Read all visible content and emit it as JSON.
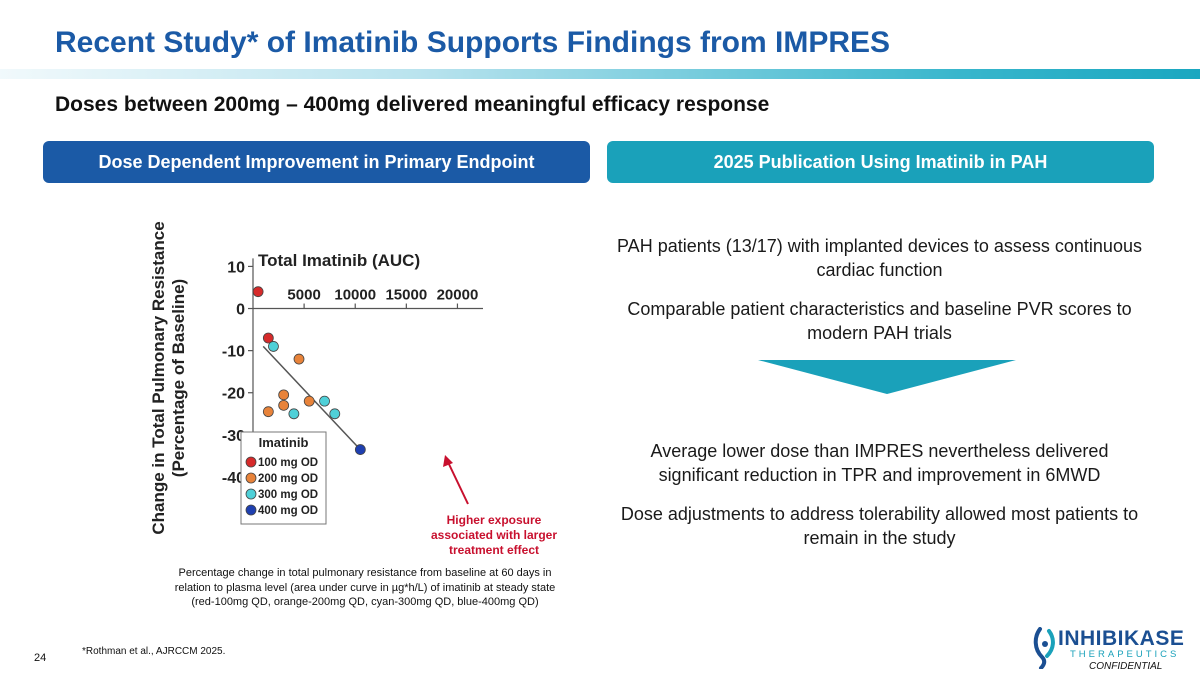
{
  "slide": {
    "title": "Recent Study* of Imatinib Supports Findings from IMPRES",
    "subtitle": "Doses between 200mg – 400mg delivered meaningful efficacy response",
    "page_number": "24",
    "footnote": "*Rothman et al., AJRCCM 2025.",
    "confidential": "CONFIDENTIAL"
  },
  "left_panel": {
    "header": "Dose Dependent Improvement in Primary Endpoint",
    "callout": [
      "Higher exposure",
      "associated with larger",
      "treatment effect"
    ],
    "caption": [
      "Percentage change in total pulmonary resistance  from baseline at 60 days in",
      "relation to plasma level (area under curve in µg*h/L) of imatinib at steady state",
      "(red-100mg QD, orange-200mg QD, cyan-300mg QD, blue-400mg QD)"
    ]
  },
  "right_panel": {
    "header": "2025 Publication Using Imatinib in PAH",
    "bullets_top": [
      "PAH patients (13/17) with implanted devices to assess continuous cardiac function",
      "Comparable patient characteristics and baseline PVR scores to modern PAH trials"
    ],
    "bullets_bottom": [
      "Average lower dose than IMPRES nevertheless delivered significant reduction in TPR and improvement in 6MWD",
      "Dose adjustments to address tolerability allowed most patients to remain in the study"
    ]
  },
  "logo": {
    "name": "INHIBIKASE",
    "tagline": "THERAPEUTICS"
  },
  "colors": {
    "title": "#1b5aa6",
    "header_left": "#1b5aa6",
    "header_right": "#1aa1ba",
    "callout": "#c8102e"
  },
  "chart_data": {
    "type": "scatter",
    "title": "Total Imatinib (AUC)",
    "ylabel": "Change in Total Pulmonary Resistance (Percentage of Baseline)",
    "xlabel": "",
    "x_ticks": [
      5000,
      10000,
      15000,
      20000
    ],
    "y_ticks": [
      10,
      0,
      -10,
      -20,
      -30,
      -40
    ],
    "xlim": [
      0,
      22500
    ],
    "ylim": [
      -45,
      12
    ],
    "legend_title": "Imatinib",
    "legend_position": "bottom-left",
    "series": [
      {
        "name": "100 mg OD",
        "color": "#d62a2a",
        "points": [
          [
            500,
            4
          ],
          [
            1500,
            -7
          ]
        ]
      },
      {
        "name": "200 mg OD",
        "color": "#e8833a",
        "points": [
          [
            1500,
            -24.5
          ],
          [
            3000,
            -20.5
          ],
          [
            3000,
            -23
          ],
          [
            4500,
            -12
          ],
          [
            5500,
            -22
          ]
        ]
      },
      {
        "name": "300 mg OD",
        "color": "#4fd0d8",
        "points": [
          [
            2000,
            -9
          ],
          [
            4000,
            -25
          ],
          [
            7000,
            -22
          ],
          [
            8000,
            -25
          ]
        ]
      },
      {
        "name": "400 mg OD",
        "color": "#1e3fb0",
        "points": [
          [
            10500,
            -33.5
          ]
        ]
      }
    ],
    "trendline": [
      [
        1000,
        -9
      ],
      [
        10500,
        -33.5
      ]
    ]
  }
}
